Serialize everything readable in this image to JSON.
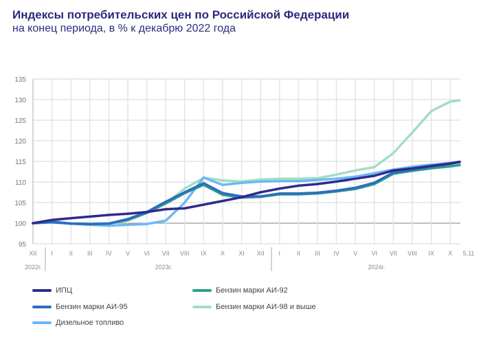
{
  "chart_data": {
    "type": "line",
    "title": "Индексы потребительских цен по Российской Федерации",
    "subtitle": "на конец периода, в % к декабрю 2022 года",
    "xlabel": "",
    "ylabel": "",
    "ylim": [
      95,
      135
    ],
    "yticks": [
      95,
      100,
      105,
      110,
      115,
      120,
      125,
      130,
      135
    ],
    "grid": true,
    "legend_position": "bottom",
    "x": [
      "XII",
      "I",
      "II",
      "III",
      "IV",
      "V",
      "VI",
      "VII",
      "VIII",
      "IX",
      "X",
      "XI",
      "XII",
      "I",
      "II",
      "III",
      "IV",
      "V",
      "VI",
      "VII",
      "VIII",
      "IX",
      "X",
      "5.11"
    ],
    "year_labels": [
      "2022г.",
      "2023г.",
      "2024г."
    ],
    "series": [
      {
        "name": "ИПЦ",
        "color": "#2e2a8f",
        "values": [
          100,
          100.8,
          101.2,
          101.6,
          102.0,
          102.3,
          102.7,
          103.4,
          103.6,
          104.5,
          105.4,
          106.3,
          107.5,
          108.4,
          109.1,
          109.5,
          110.1,
          110.8,
          111.5,
          112.8,
          113.3,
          113.9,
          114.5,
          114.9
        ]
      },
      {
        "name": "Бензин марки АИ-92",
        "color": "#2aa08a",
        "values": [
          100,
          100.2,
          99.9,
          99.8,
          99.9,
          100.8,
          102.5,
          104.8,
          107.3,
          109.3,
          106.9,
          106.2,
          106.4,
          107.0,
          107.0,
          107.2,
          107.7,
          108.3,
          109.5,
          112.0,
          112.7,
          113.3,
          113.8,
          114.1
        ]
      },
      {
        "name": "Бензин марки АИ-95",
        "color": "#2f6cc0",
        "values": [
          100,
          100.3,
          99.9,
          99.8,
          99.9,
          101.0,
          102.7,
          105.2,
          107.5,
          109.7,
          107.3,
          106.5,
          106.5,
          107.2,
          107.2,
          107.4,
          107.9,
          108.6,
          109.8,
          112.3,
          113.0,
          113.7,
          114.4,
          114.8
        ]
      },
      {
        "name": "Бензин марки АИ-98 и  выше",
        "color": "#a3dec2",
        "values": [
          100,
          100.3,
          100.0,
          99.9,
          100.0,
          100.6,
          102.5,
          104.8,
          108.4,
          111.0,
          110.4,
          110.1,
          110.6,
          110.8,
          110.8,
          110.9,
          111.8,
          112.8,
          113.6,
          117.0,
          122.0,
          127.2,
          129.5,
          129.8
        ]
      },
      {
        "name": "Дизельное топливо",
        "color": "#6cb8f7",
        "values": [
          100,
          100.5,
          99.9,
          99.6,
          99.4,
          99.6,
          99.8,
          100.6,
          105.0,
          111.1,
          109.3,
          109.8,
          110.1,
          110.2,
          110.2,
          110.5,
          110.8,
          111.3,
          112.1,
          113.0,
          113.7,
          114.2,
          114.6,
          114.9
        ]
      }
    ]
  }
}
